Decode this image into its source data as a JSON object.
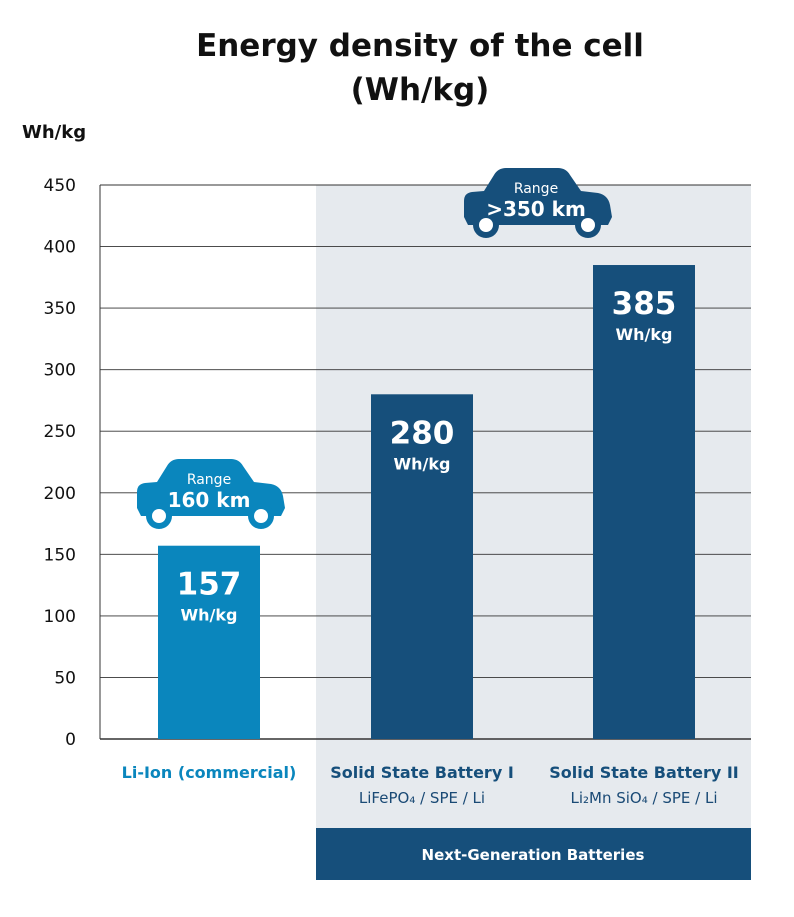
{
  "colors": {
    "liion": "#0a86bd",
    "ssb": "#164f7b",
    "band_bg": "#e6eaee",
    "grid": "#333333",
    "car_liion": "#0a86bd",
    "car_ssb": "#164f7b"
  },
  "chart_data": {
    "type": "bar",
    "title": "Energy density of the cell",
    "subtitle": "(Wh/kg)",
    "ylabel": "Wh/kg",
    "ylim": [
      0,
      450
    ],
    "yticks": [
      0,
      50,
      100,
      150,
      200,
      250,
      300,
      350,
      400,
      450
    ],
    "categories": [
      {
        "name": "Li-Ion (commercial)",
        "subtitle": ""
      },
      {
        "name": "Solid State Battery I",
        "subtitle": "LiFePO₄ / SPE / Li"
      },
      {
        "name": "Solid State Battery  II",
        "subtitle": "Li₂Mn SiO₄ / SPE / Li"
      }
    ],
    "values": [
      157,
      280,
      385
    ],
    "value_labels": [
      "157",
      "280",
      "385"
    ],
    "value_unit": "Wh/kg",
    "annotations": [
      {
        "type": "car",
        "label": "Range",
        "value": "160 km",
        "bar_index": 0
      },
      {
        "type": "car",
        "label": "Range",
        "value": ">350 km",
        "bar_index": 2
      }
    ],
    "group_band": {
      "label": "Next-Generation Batteries",
      "covers": [
        1,
        2
      ]
    }
  }
}
